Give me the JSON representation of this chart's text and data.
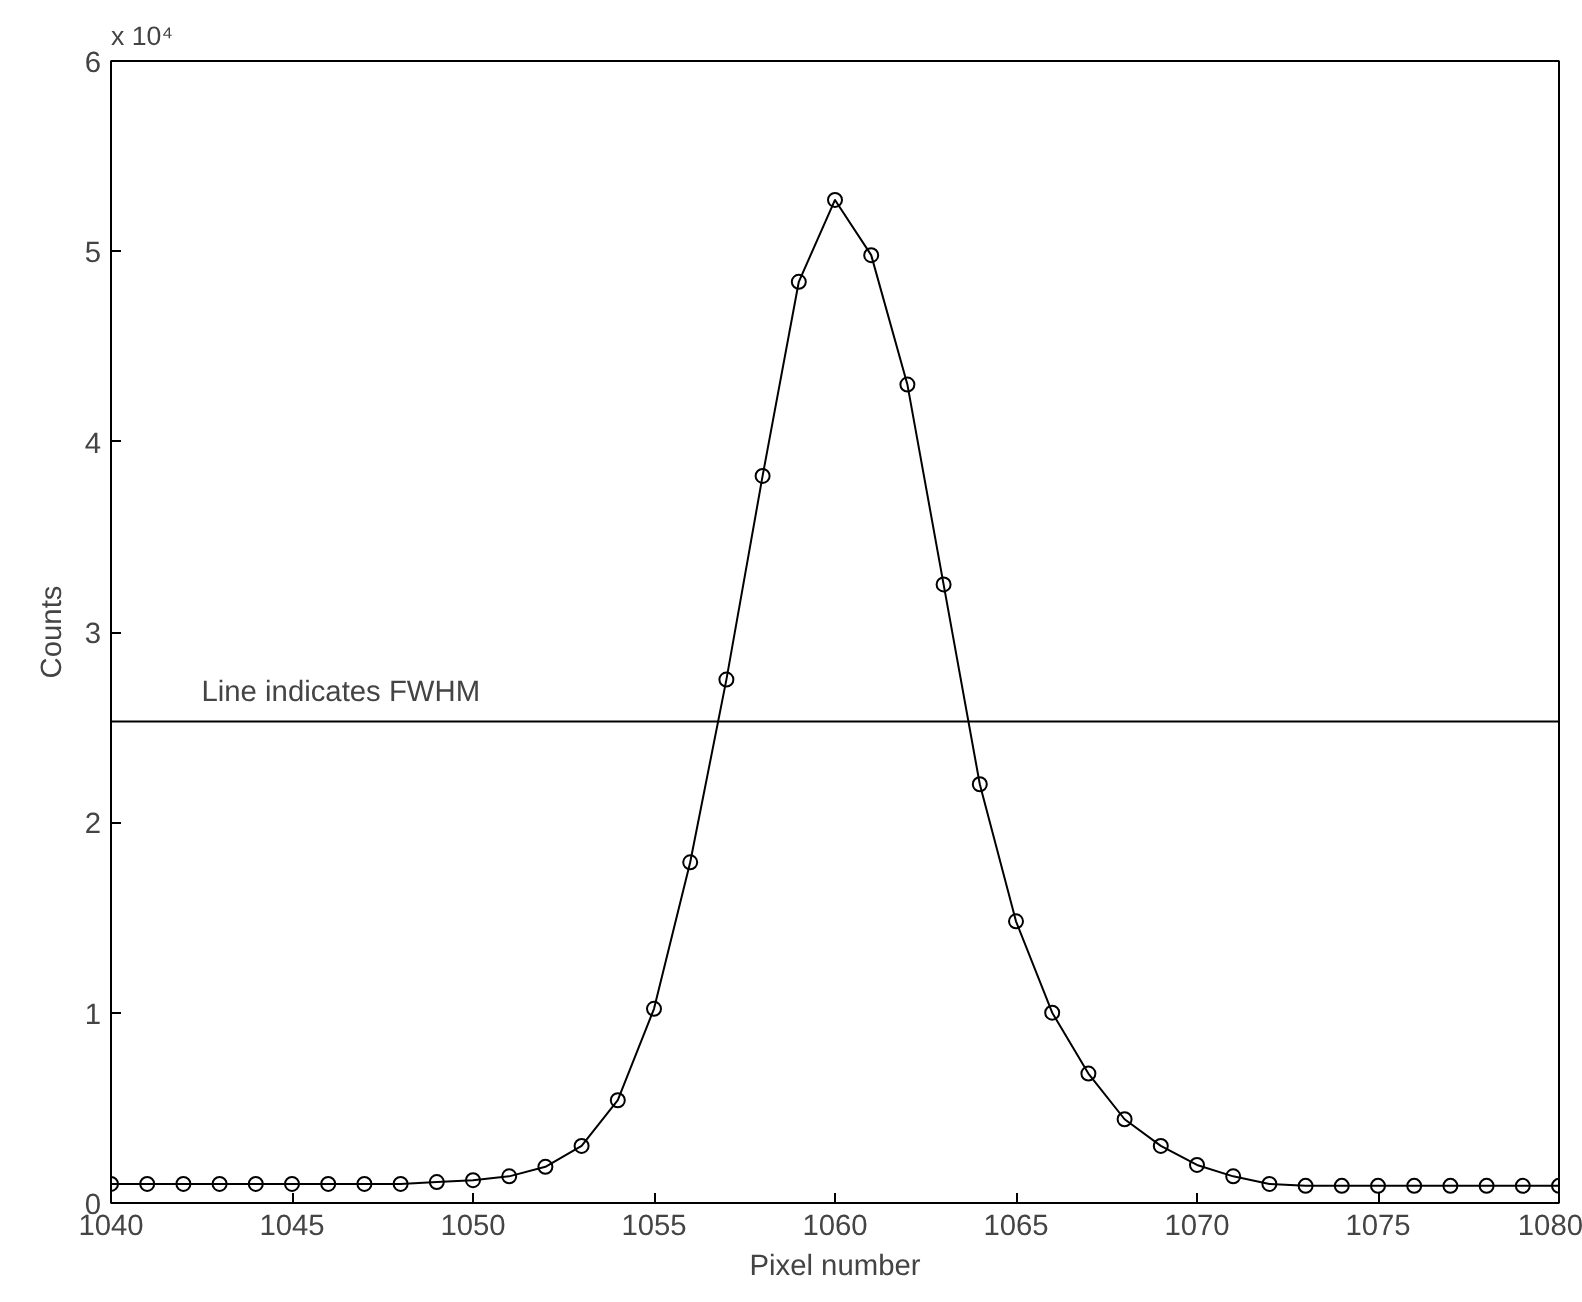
{
  "chart_data": {
    "type": "line",
    "xlabel": "Pixel number",
    "ylabel": "Counts",
    "x": [
      1040,
      1041,
      1042,
      1043,
      1044,
      1045,
      1046,
      1047,
      1048,
      1049,
      1050,
      1051,
      1052,
      1053,
      1054,
      1055,
      1056,
      1057,
      1058,
      1059,
      1060,
      1061,
      1062,
      1063,
      1064,
      1065,
      1066,
      1067,
      1068,
      1069,
      1070,
      1071,
      1072,
      1073,
      1074,
      1075,
      1076,
      1077,
      1078,
      1079,
      1080
    ],
    "series": [
      {
        "color": "#000000",
        "values": [
          0.1,
          0.1,
          0.1,
          0.1,
          0.1,
          0.1,
          0.1,
          0.1,
          0.1,
          0.11,
          0.12,
          0.14,
          0.19,
          0.3,
          0.54,
          1.02,
          1.79,
          2.75,
          3.82,
          4.84,
          5.27,
          4.98,
          4.3,
          3.25,
          2.2,
          1.48,
          1.0,
          0.68,
          0.44,
          0.3,
          0.2,
          0.14,
          0.1,
          0.09,
          0.09,
          0.09,
          0.09,
          0.09,
          0.09,
          0.09,
          0.09
        ]
      }
    ],
    "xlim": [
      1040,
      1080
    ],
    "xticks": [
      1040,
      1045,
      1050,
      1055,
      1060,
      1065,
      1070,
      1075,
      1080
    ],
    "ylim": [
      0,
      6
    ],
    "yticks": [
      0,
      1,
      2,
      3,
      4,
      5,
      6
    ],
    "ref_lines": [
      {
        "axis": "y",
        "value": 2.53,
        "label": "Line indicates FWHM",
        "color": "#000000"
      }
    ],
    "annotations": [
      "x 10⁴"
    ],
    "marker": "circle",
    "line_style": "solid",
    "grid": false
  }
}
